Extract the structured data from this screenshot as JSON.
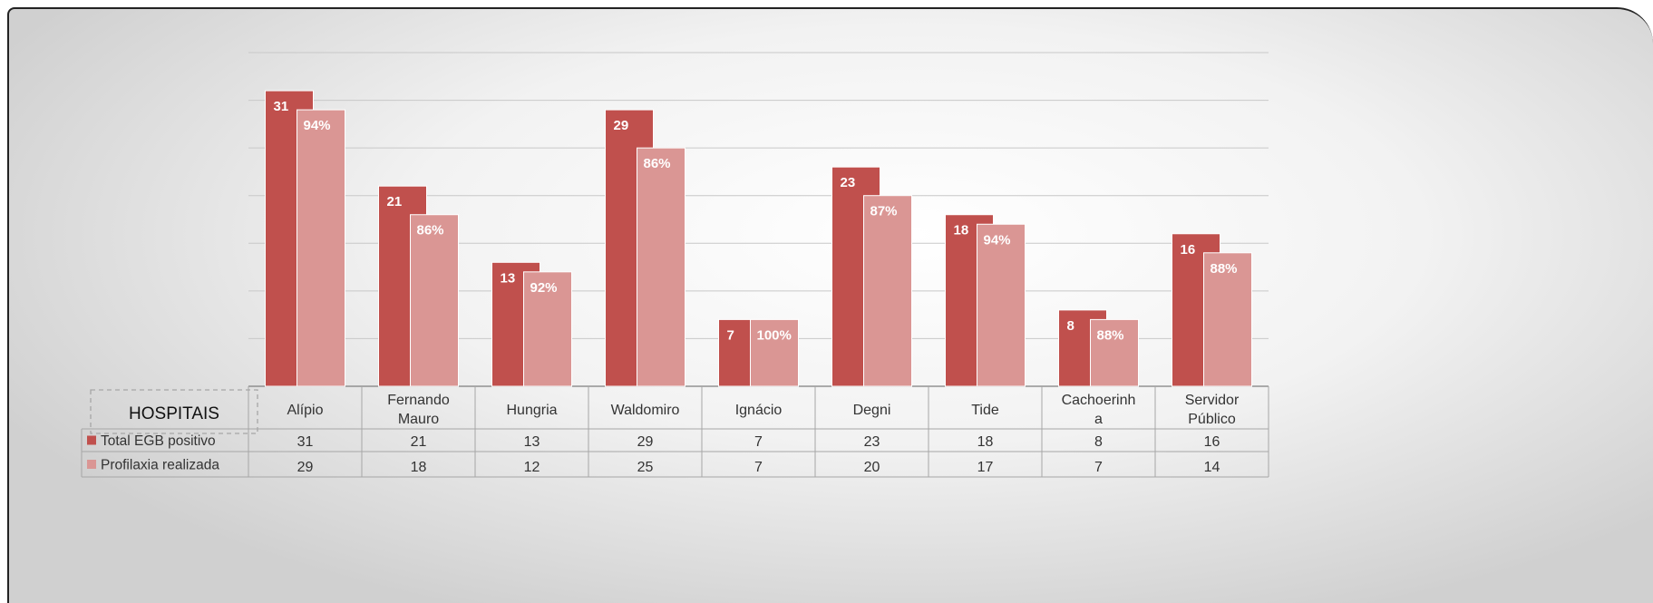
{
  "chart_data": {
    "type": "bar",
    "title": "",
    "xlabel": "",
    "ylabel": "",
    "ylim": [
      0,
      35
    ],
    "grid": true,
    "legend_position": "data-table-left",
    "table_header": "HOSPITAIS",
    "categories": [
      [
        "Alípio"
      ],
      [
        "Fernando",
        "Mauro"
      ],
      [
        "Hungria"
      ],
      [
        "Waldomiro"
      ],
      [
        "Ignácio"
      ],
      [
        "Degni"
      ],
      [
        "Tide"
      ],
      [
        "Cachoerinh",
        "a"
      ],
      [
        "Servidor",
        "Público"
      ]
    ],
    "series": [
      {
        "name": "Total EGB positivo",
        "color": "#c0504d",
        "values": [
          31,
          21,
          13,
          29,
          7,
          23,
          18,
          8,
          16
        ],
        "bar_labels": [
          "31",
          "21",
          "13",
          "29",
          "7",
          "23",
          "18",
          "8",
          "16"
        ],
        "table_values": [
          "31",
          "21",
          "13",
          "29",
          "7",
          "23",
          "18",
          "8",
          "16"
        ]
      },
      {
        "name": "Profilaxia realizada",
        "color": "#da9694",
        "values": [
          29,
          18,
          12,
          25,
          7,
          20,
          17,
          7,
          14
        ],
        "bar_labels": [
          "94%",
          "86%",
          "92%",
          "86%",
          "100%",
          "87%",
          "94%",
          "88%",
          "88%"
        ],
        "table_values": [
          "29",
          "18",
          "12",
          "25",
          "7",
          "20",
          "17",
          "7",
          "14"
        ]
      }
    ]
  }
}
